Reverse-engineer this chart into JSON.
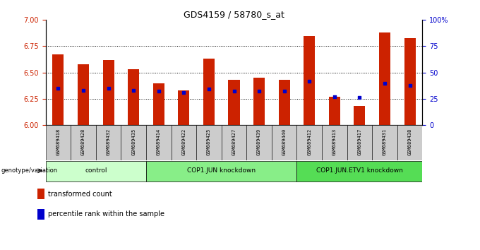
{
  "title": "GDS4159 / 58780_s_at",
  "samples": [
    "GSM689418",
    "GSM689428",
    "GSM689432",
    "GSM689435",
    "GSM689414",
    "GSM689422",
    "GSM689425",
    "GSM689427",
    "GSM689439",
    "GSM689440",
    "GSM689412",
    "GSM689413",
    "GSM689417",
    "GSM689431",
    "GSM689438"
  ],
  "bar_values": [
    6.67,
    6.58,
    6.62,
    6.53,
    6.4,
    6.33,
    6.63,
    6.43,
    6.45,
    6.43,
    6.85,
    6.27,
    6.18,
    6.88,
    6.83
  ],
  "percentile_values": [
    35,
    33,
    35,
    33,
    32,
    31,
    34,
    32,
    32,
    32,
    42,
    27,
    26,
    40,
    38
  ],
  "ylim_left": [
    6.0,
    7.0
  ],
  "ylim_right": [
    0,
    100
  ],
  "yticks_left": [
    6.0,
    6.25,
    6.5,
    6.75,
    7.0
  ],
  "yticks_right": [
    0,
    25,
    50,
    75,
    100
  ],
  "bar_color": "#cc2200",
  "dot_color": "#0000cc",
  "bar_bottom": 6.0,
  "groups": [
    {
      "label": "control",
      "start": 0,
      "end": 4,
      "color": "#ccffcc"
    },
    {
      "label": "COP1.JUN knockdown",
      "start": 4,
      "end": 10,
      "color": "#88ee88"
    },
    {
      "label": "COP1.JUN.ETV1 knockdown",
      "start": 10,
      "end": 15,
      "color": "#55dd55"
    }
  ],
  "genotype_label": "genotype/variation",
  "legend_items": [
    {
      "label": "transformed count",
      "color": "#cc2200"
    },
    {
      "label": "percentile rank within the sample",
      "color": "#0000cc"
    }
  ],
  "bg_color": "#ffffff",
  "tick_label_color_left": "#cc2200",
  "tick_label_color_right": "#0000cc"
}
